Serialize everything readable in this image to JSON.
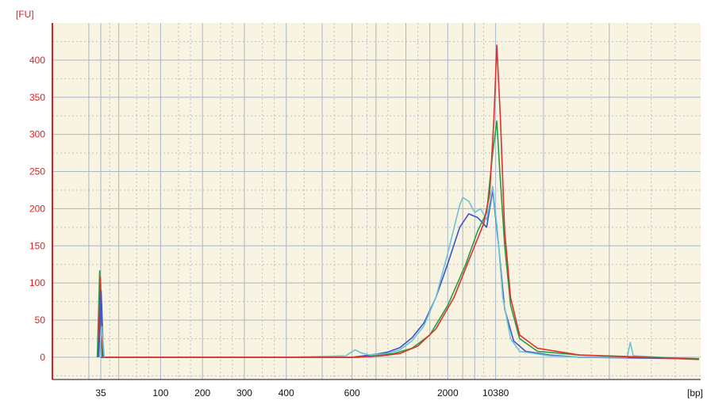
{
  "chart_data": {
    "type": "line",
    "title": "",
    "ylabel": "[FU]",
    "xlabel": "[bp]",
    "ylim": [
      -30,
      450
    ],
    "yticks": [
      0,
      50,
      100,
      150,
      200,
      250,
      300,
      350,
      400
    ],
    "xticks": [
      {
        "label": "35",
        "pos": 0.0
      },
      {
        "label": "100",
        "pos": 0.1
      },
      {
        "label": "200",
        "pos": 0.17
      },
      {
        "label": "300",
        "pos": 0.24
      },
      {
        "label": "400",
        "pos": 0.31
      },
      {
        "label": "600",
        "pos": 0.42
      },
      {
        "label": "2000",
        "pos": 0.58
      },
      {
        "label": "10380",
        "pos": 0.66
      }
    ],
    "grid": true,
    "colors": {
      "background": "#f8f4e1",
      "axis": "#e02020",
      "ytick_text": "#e02020",
      "xtick_text": "#111111",
      "grid_major": "#a9b6c8",
      "grid_minor": "#b9bfc8"
    },
    "series": [
      {
        "color": "#3a55c8",
        "points": [
          [
            0,
            0
          ],
          [
            0.31,
            0
          ],
          [
            0.42,
            0
          ],
          [
            0.44,
            2
          ],
          [
            0.46,
            4
          ],
          [
            0.48,
            7
          ],
          [
            0.5,
            13
          ],
          [
            0.52,
            26
          ],
          [
            0.54,
            46
          ],
          [
            0.56,
            80
          ],
          [
            0.58,
            126
          ],
          [
            0.6,
            175
          ],
          [
            0.615,
            193
          ],
          [
            0.63,
            188
          ],
          [
            0.645,
            175
          ],
          [
            0.655,
            225
          ],
          [
            0.665,
            150
          ],
          [
            0.675,
            65
          ],
          [
            0.69,
            22
          ],
          [
            0.71,
            8
          ],
          [
            0.75,
            3
          ],
          [
            0.8,
            0
          ],
          [
            1.0,
            -2
          ]
        ]
      },
      {
        "color": "#6cc3d6",
        "points": [
          [
            0,
            0
          ],
          [
            0.31,
            0
          ],
          [
            0.41,
            2
          ],
          [
            0.415,
            5
          ],
          [
            0.425,
            10
          ],
          [
            0.435,
            6
          ],
          [
            0.45,
            3
          ],
          [
            0.48,
            5
          ],
          [
            0.5,
            10
          ],
          [
            0.52,
            22
          ],
          [
            0.54,
            42
          ],
          [
            0.56,
            80
          ],
          [
            0.58,
            140
          ],
          [
            0.6,
            205
          ],
          [
            0.605,
            215
          ],
          [
            0.615,
            210
          ],
          [
            0.625,
            195
          ],
          [
            0.635,
            200
          ],
          [
            0.645,
            185
          ],
          [
            0.655,
            230
          ],
          [
            0.663,
            170
          ],
          [
            0.672,
            80
          ],
          [
            0.685,
            25
          ],
          [
            0.7,
            8
          ],
          [
            0.75,
            2
          ],
          [
            0.8,
            0
          ],
          [
            0.88,
            0
          ],
          [
            0.885,
            20
          ],
          [
            0.89,
            2
          ],
          [
            1.0,
            -3
          ]
        ]
      },
      {
        "color": "#22a044",
        "points": [
          [
            0,
            0
          ],
          [
            0.31,
            0
          ],
          [
            0.43,
            0
          ],
          [
            0.46,
            2
          ],
          [
            0.49,
            5
          ],
          [
            0.52,
            12
          ],
          [
            0.55,
            30
          ],
          [
            0.58,
            70
          ],
          [
            0.61,
            125
          ],
          [
            0.63,
            170
          ],
          [
            0.645,
            195
          ],
          [
            0.655,
            275
          ],
          [
            0.662,
            318
          ],
          [
            0.667,
            250
          ],
          [
            0.675,
            150
          ],
          [
            0.685,
            70
          ],
          [
            0.7,
            25
          ],
          [
            0.73,
            8
          ],
          [
            0.8,
            3
          ],
          [
            1.0,
            -2
          ]
        ]
      },
      {
        "color": "#e03030",
        "points": [
          [
            0,
            0
          ],
          [
            0.31,
            0
          ],
          [
            0.43,
            0
          ],
          [
            0.47,
            2
          ],
          [
            0.5,
            5
          ],
          [
            0.53,
            15
          ],
          [
            0.56,
            38
          ],
          [
            0.59,
            80
          ],
          [
            0.62,
            140
          ],
          [
            0.64,
            180
          ],
          [
            0.65,
            220
          ],
          [
            0.657,
            320
          ],
          [
            0.662,
            420
          ],
          [
            0.668,
            320
          ],
          [
            0.675,
            170
          ],
          [
            0.685,
            80
          ],
          [
            0.7,
            30
          ],
          [
            0.73,
            12
          ],
          [
            0.8,
            3
          ],
          [
            1.0,
            -3
          ]
        ]
      }
    ],
    "marker_peaks": [
      {
        "color": "#22a044",
        "value": 117
      },
      {
        "color": "#e03030",
        "value": 108
      },
      {
        "color": "#3a55c8",
        "value": 90
      },
      {
        "color": "#6cc3d6",
        "value": 42
      }
    ]
  }
}
